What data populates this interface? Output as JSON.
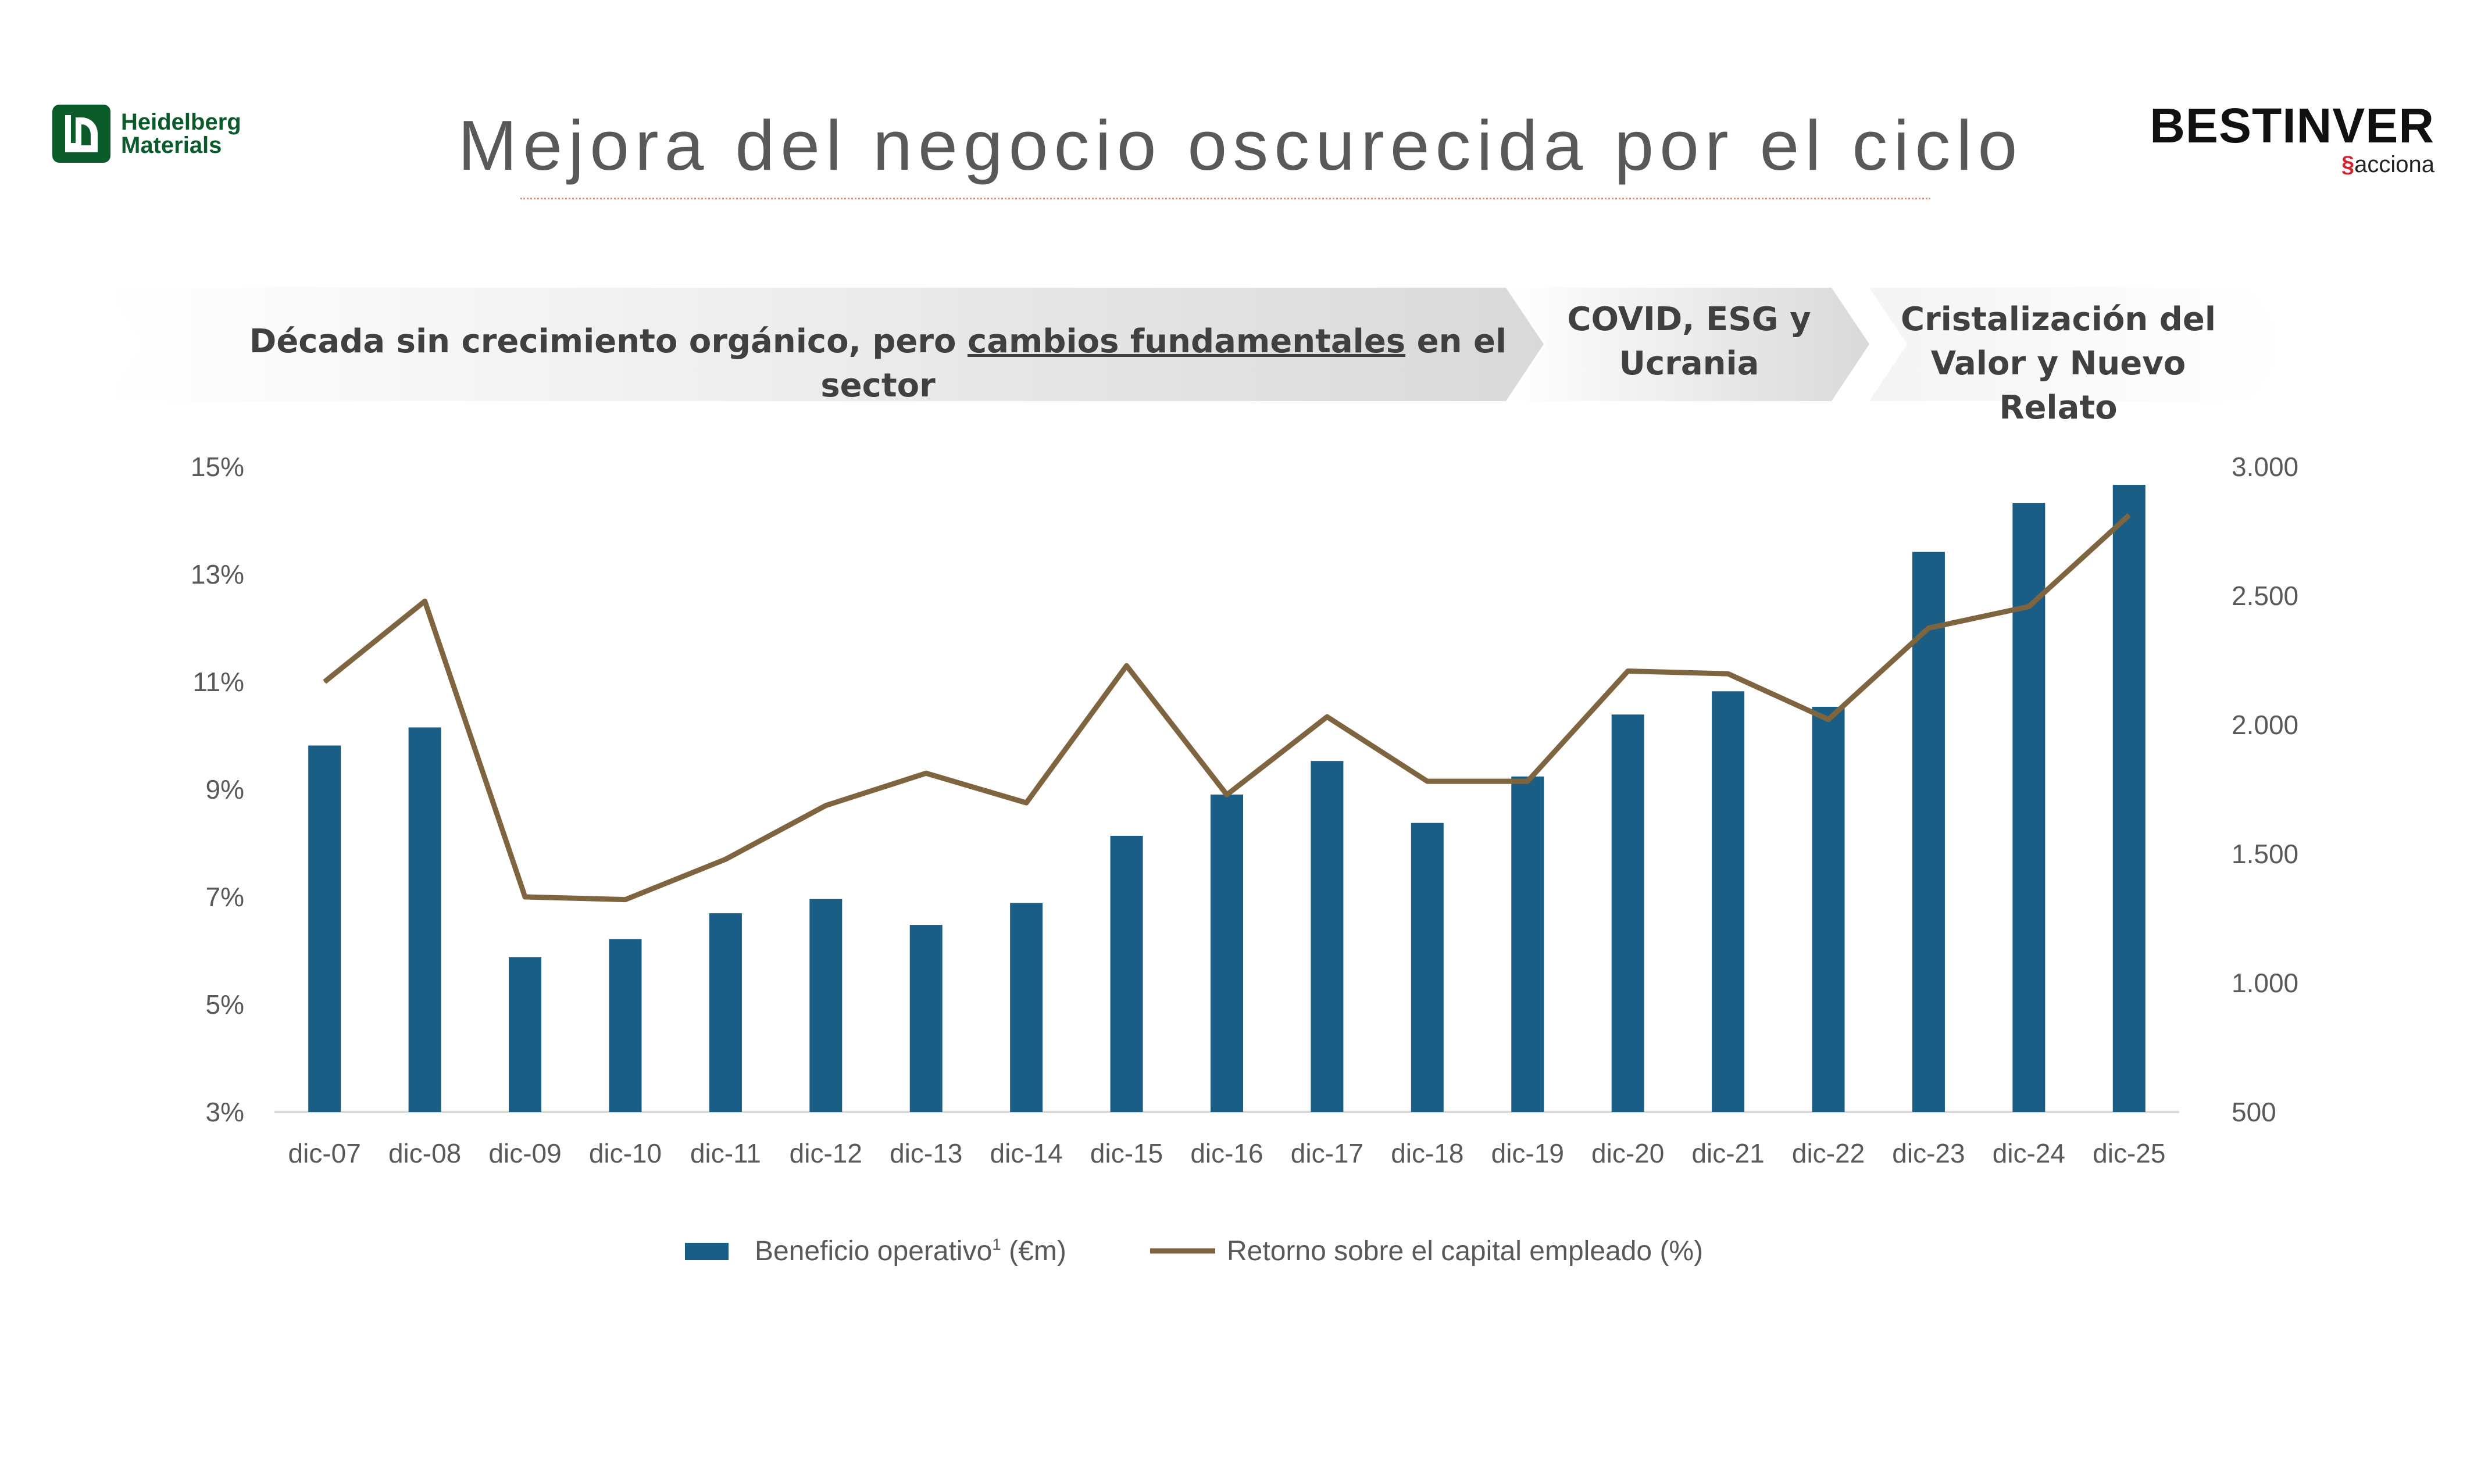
{
  "header": {
    "title": "Mejora del negocio oscurecida por el ciclo",
    "logo_left_line1": "Heidelberg",
    "logo_left_line2": "Materials",
    "logo_right_brand": "BESTINVER",
    "logo_right_sub": "acciona"
  },
  "phases": [
    {
      "text_before": "Década sin crecimiento orgánico, pero ",
      "text_underlined": "cambios fundamentales",
      "text_after": " en el sector"
    },
    {
      "line1": "COVID, ESG y",
      "line2": "Ucrania"
    },
    {
      "line1": "Cristalización del",
      "line2": "Valor y Nuevo Relato"
    }
  ],
  "colors": {
    "bar": "#1b5e85",
    "line": "#7f6440",
    "axis_text": "#595959",
    "title": "#595959"
  },
  "chart_data": {
    "type": "bar",
    "categories": [
      "dic-07",
      "dic-08",
      "dic-09",
      "dic-10",
      "dic-11",
      "dic-12",
      "dic-13",
      "dic-14",
      "dic-15",
      "dic-16",
      "dic-17",
      "dic-18",
      "dic-19",
      "dic-20",
      "dic-21",
      "dic-22",
      "dic-23",
      "dic-24",
      "dic-25"
    ],
    "series": [
      {
        "name": "Beneficio operativo",
        "name_sup": "1",
        "name_suffix": " (€m)",
        "type": "bar",
        "axis": "right",
        "values": [
          1920,
          1990,
          1100,
          1170,
          1270,
          1325,
          1225,
          1310,
          1570,
          1730,
          1860,
          1620,
          1800,
          2040,
          2130,
          2070,
          2670,
          2860,
          2930
        ]
      },
      {
        "name": "Retorno sobre el capital empleado (%)",
        "type": "line",
        "axis": "left",
        "values": [
          11.0,
          12.5,
          7.0,
          6.95,
          7.7,
          8.7,
          9.3,
          8.75,
          11.3,
          8.9,
          10.35,
          9.15,
          9.15,
          11.2,
          11.15,
          10.3,
          12.0,
          12.4,
          14.1
        ]
      }
    ],
    "ylim_left": [
      3,
      15
    ],
    "yticks_left": [
      "15%",
      "13%",
      "11%",
      "9%",
      "7%",
      "5%",
      "3%"
    ],
    "ylim_right": [
      500,
      3000
    ],
    "yticks_right": [
      "3.000",
      "2.500",
      "2.000",
      "1.500",
      "1.000",
      "500"
    ],
    "legend_position": "bottom"
  }
}
